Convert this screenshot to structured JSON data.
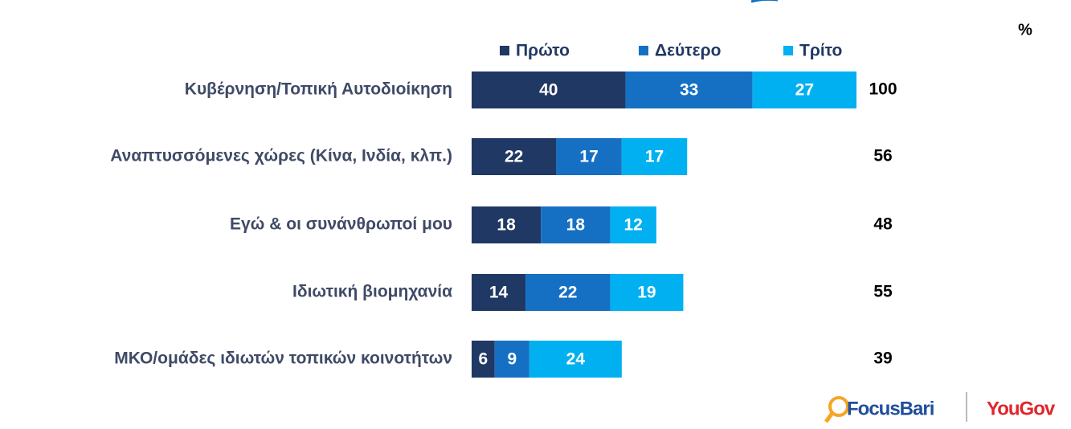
{
  "chart_data": {
    "type": "stacked-barh",
    "categories": [
      "Κυβέρνηση/Τοπική Αυτοδιοίκηση",
      "Αναπτυσσόμενες χώρες (Κίνα, Ινδία, κλπ.)",
      "Εγώ & οι συνάνθρωποί μου",
      "Ιδιωτική βιομηχανία",
      "ΜΚΟ/ομάδες ιδιωτών τοπικών κοινοτήτων"
    ],
    "series": [
      {
        "name": "Πρώτο",
        "color": "#203864",
        "values": [
          40,
          22,
          18,
          14,
          6
        ]
      },
      {
        "name": "Δεύτερο",
        "color": "#1570c4",
        "values": [
          33,
          17,
          18,
          22,
          9
        ]
      },
      {
        "name": "Τρίτο",
        "color": "#00b0f0",
        "values": [
          27,
          17,
          12,
          19,
          24
        ]
      }
    ],
    "totals": [
      100,
      56,
      48,
      55,
      39
    ],
    "unit_label": "%",
    "xlim": [
      0,
      100
    ],
    "legend": "top"
  },
  "branding": [
    "FocusBari",
    "YouGov"
  ]
}
